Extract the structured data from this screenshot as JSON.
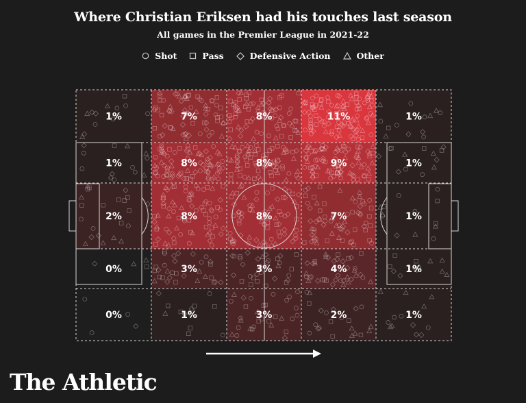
{
  "header": {
    "title": "Where Christian Eriksen had his touches last season",
    "subtitle": "All games in the Premier League in 2021-22"
  },
  "legend": {
    "items": [
      {
        "label": "Shot",
        "icon": "circle-icon"
      },
      {
        "label": "Pass",
        "icon": "square-icon"
      },
      {
        "label": "Defensive Action",
        "icon": "diamond-icon"
      },
      {
        "label": "Other",
        "icon": "triangle-icon"
      }
    ]
  },
  "chart_data": {
    "type": "heatmap",
    "title": "Where Christian Eriksen had his touches last season",
    "subtitle": "All games in the Premier League in 2021-22",
    "unit": "% of touches",
    "attacking_direction": "left-to-right",
    "rows": 5,
    "cols": 5,
    "grid": [
      [
        "1%",
        "7%",
        "8%",
        "11%",
        "1%"
      ],
      [
        "1%",
        "8%",
        "8%",
        "9%",
        "1%"
      ],
      [
        "2%",
        "8%",
        "8%",
        "7%",
        "1%"
      ],
      [
        "0%",
        "3%",
        "3%",
        "4%",
        "1%"
      ],
      [
        "0%",
        "1%",
        "3%",
        "2%",
        "1%"
      ]
    ],
    "values": [
      [
        1,
        7,
        8,
        11,
        1
      ],
      [
        1,
        8,
        8,
        9,
        1
      ],
      [
        2,
        8,
        8,
        7,
        1
      ],
      [
        0,
        3,
        3,
        4,
        1
      ],
      [
        0,
        1,
        3,
        2,
        1
      ]
    ],
    "legend_categories": [
      "Shot",
      "Pass",
      "Defensive Action",
      "Other"
    ]
  },
  "colors": {
    "background": "#1c1c1c",
    "heat_max": "#d9363e",
    "heat_min": "#1e1e1e",
    "lines": "#d8d8d8"
  },
  "brand": {
    "logo_text": "The Athletic"
  }
}
